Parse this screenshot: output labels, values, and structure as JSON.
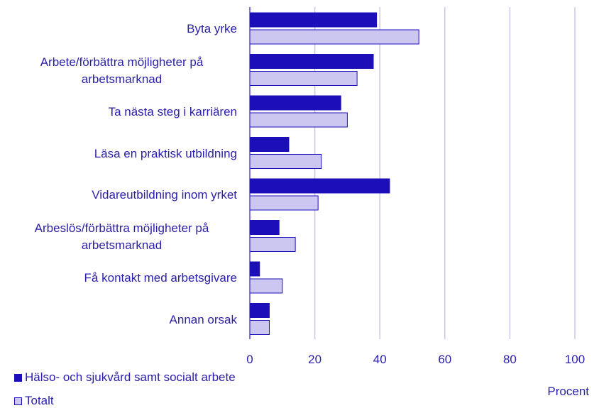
{
  "chart_data": {
    "type": "hbar",
    "categories": [
      "Byta yrke",
      "Arbete/förbättra möjligheter på arbetsmarknad",
      "Ta nästa steg i karriären",
      "Läsa en praktisk utbildning",
      "Vidareutbildning inom  yrket",
      "Arbeslös/förbättra möjligheter på arbetsmarknad",
      "Få kontakt med arbetsgivare",
      "Annan orsak"
    ],
    "series": [
      {
        "name": "Hälso- och sjukvård samt socialt arbete",
        "color": "#1d0fb8",
        "values": [
          39,
          38,
          28,
          12,
          43,
          9,
          3,
          6
        ]
      },
      {
        "name": "Totalt",
        "color": "#cbc7f0",
        "values": [
          52,
          33,
          30,
          22,
          21,
          14,
          10,
          6
        ]
      }
    ],
    "x_label": "Procent",
    "xlim": [
      0,
      100
    ],
    "xticks": [
      0,
      20,
      40,
      60,
      80,
      100
    ],
    "grid": true
  }
}
